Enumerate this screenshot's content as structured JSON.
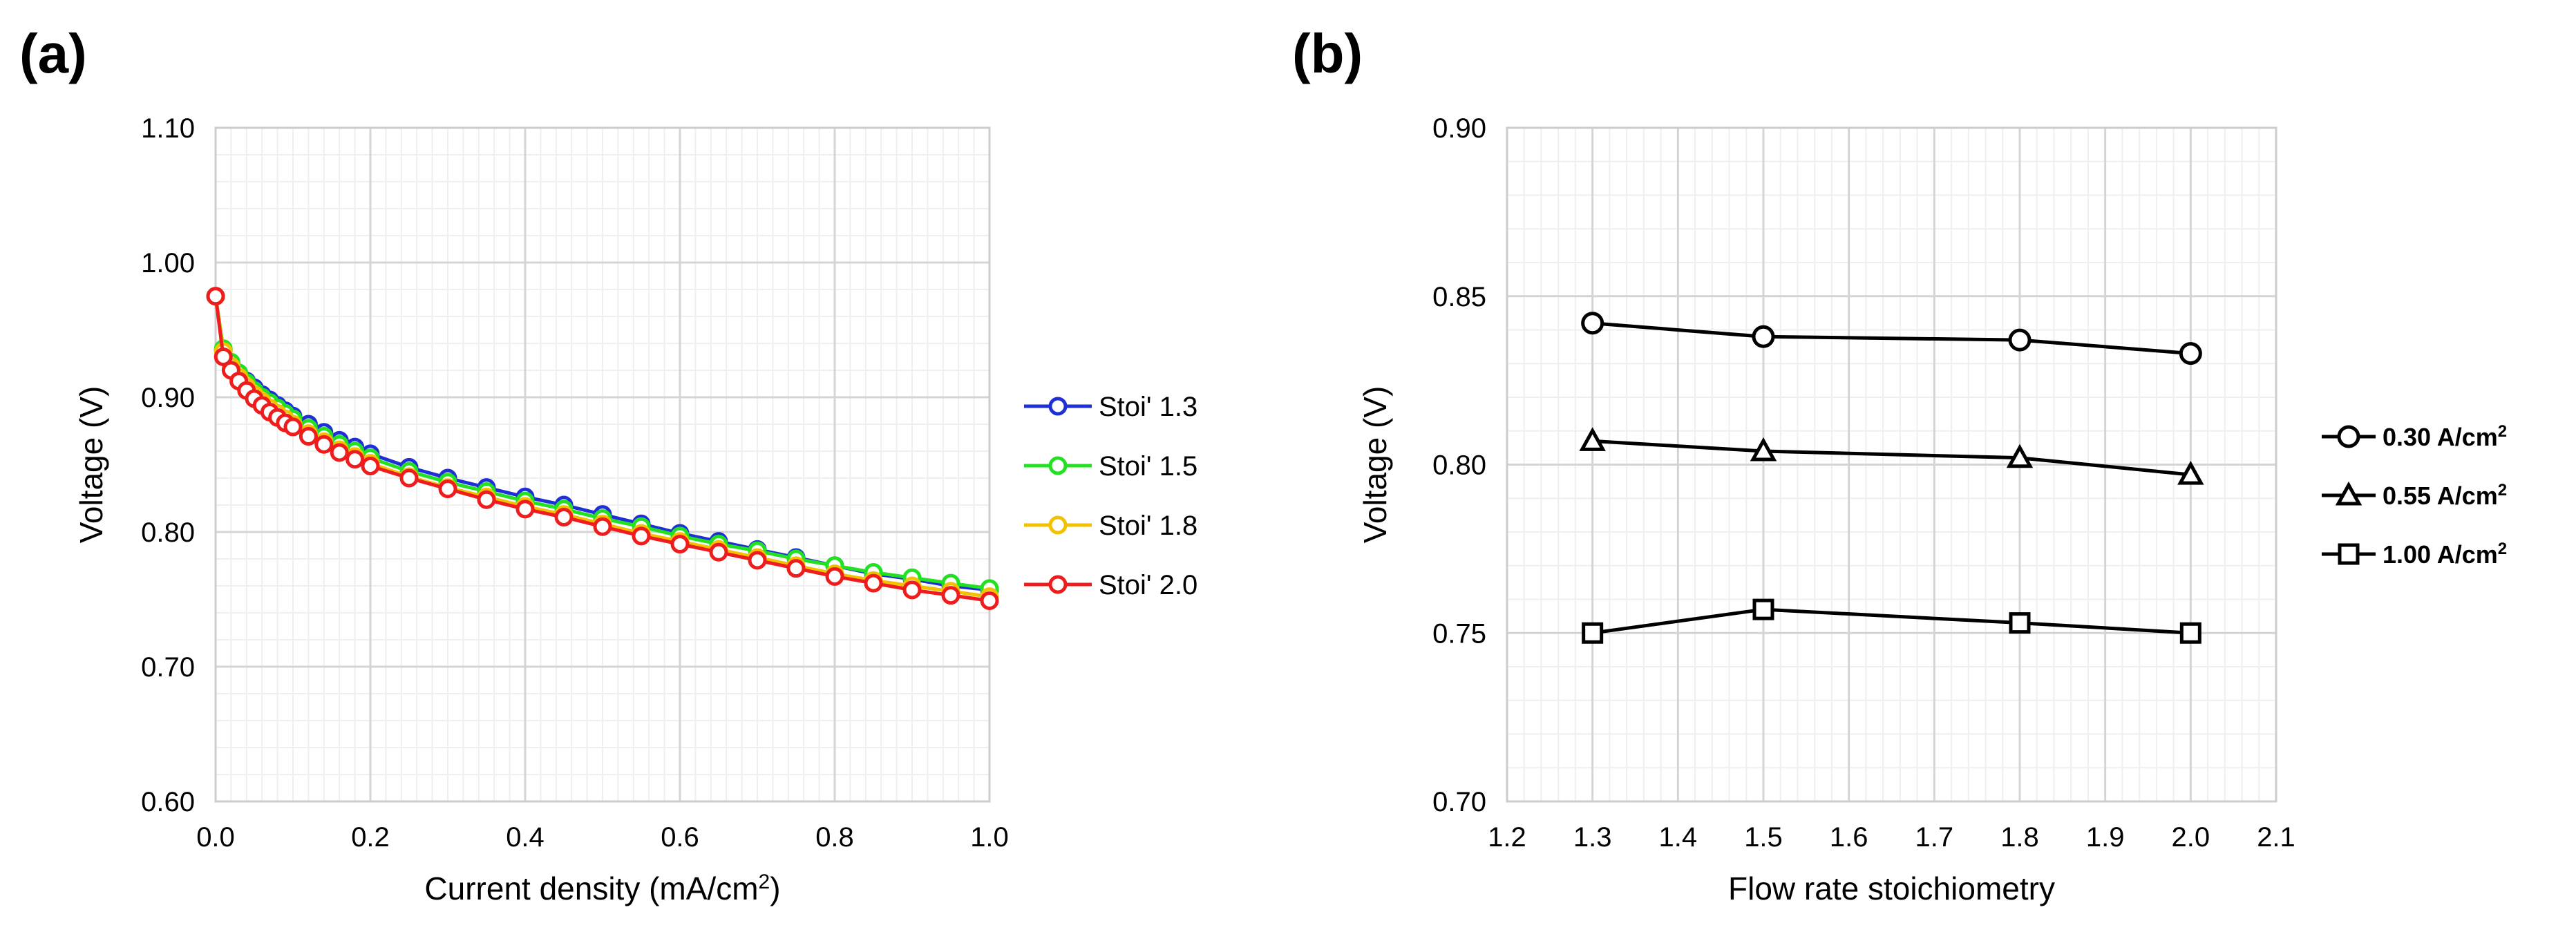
{
  "panels": {
    "a": "(a)",
    "b": "(b)"
  },
  "chart_data": [
    {
      "type": "line",
      "panel_label": "(a)",
      "title": "",
      "xlabel": "Current density (mA/cm",
      "xlabel_sup": "2",
      "xlabel_end": ")",
      "ylabel": "Voltage (V)",
      "xlim": [
        0.0,
        1.0
      ],
      "ylim": [
        0.6,
        1.1
      ],
      "xticks": [
        "0.0",
        "0.2",
        "0.4",
        "0.6",
        "0.8",
        "1.0"
      ],
      "yticks": [
        "0.60",
        "0.70",
        "0.80",
        "0.90",
        "1.00",
        "1.10"
      ],
      "grid": true,
      "legend_position": "right",
      "x": [
        0.0,
        0.01,
        0.02,
        0.03,
        0.04,
        0.05,
        0.06,
        0.07,
        0.08,
        0.09,
        0.1,
        0.12,
        0.14,
        0.16,
        0.18,
        0.2,
        0.25,
        0.3,
        0.35,
        0.4,
        0.45,
        0.5,
        0.55,
        0.6,
        0.65,
        0.7,
        0.75,
        0.8,
        0.85,
        0.9,
        0.95,
        1.0
      ],
      "series": [
        {
          "name": "Stoi' 1.3",
          "color": "#1f2fd6",
          "values": [
            0.975,
            0.935,
            0.925,
            0.918,
            0.912,
            0.907,
            0.902,
            0.898,
            0.894,
            0.89,
            0.886,
            0.88,
            0.874,
            0.868,
            0.863,
            0.858,
            0.848,
            0.84,
            0.833,
            0.826,
            0.82,
            0.813,
            0.806,
            0.799,
            0.793,
            0.787,
            0.781,
            0.775,
            0.769,
            0.765,
            0.76,
            0.757
          ]
        },
        {
          "name": "Stoi' 1.5",
          "color": "#22e022",
          "values": [
            0.975,
            0.936,
            0.926,
            0.918,
            0.911,
            0.905,
            0.9,
            0.896,
            0.892,
            0.888,
            0.884,
            0.877,
            0.871,
            0.865,
            0.86,
            0.855,
            0.845,
            0.837,
            0.83,
            0.823,
            0.817,
            0.81,
            0.804,
            0.797,
            0.791,
            0.786,
            0.78,
            0.775,
            0.77,
            0.766,
            0.762,
            0.758
          ]
        },
        {
          "name": "Stoi' 1.8",
          "color": "#f2c200",
          "values": [
            0.975,
            0.934,
            0.923,
            0.915,
            0.908,
            0.902,
            0.897,
            0.892,
            0.888,
            0.884,
            0.88,
            0.873,
            0.867,
            0.861,
            0.856,
            0.851,
            0.841,
            0.833,
            0.826,
            0.819,
            0.813,
            0.806,
            0.799,
            0.793,
            0.787,
            0.781,
            0.775,
            0.769,
            0.764,
            0.76,
            0.756,
            0.752
          ]
        },
        {
          "name": "Stoi' 2.0",
          "color": "#ee1c1c",
          "values": [
            0.975,
            0.93,
            0.92,
            0.912,
            0.905,
            0.899,
            0.894,
            0.889,
            0.885,
            0.881,
            0.878,
            0.871,
            0.865,
            0.859,
            0.854,
            0.849,
            0.84,
            0.832,
            0.824,
            0.817,
            0.811,
            0.804,
            0.797,
            0.791,
            0.785,
            0.779,
            0.773,
            0.767,
            0.762,
            0.757,
            0.753,
            0.749
          ]
        }
      ]
    },
    {
      "type": "line",
      "panel_label": "(b)",
      "title": "",
      "xlabel": "Flow rate stoichiometry",
      "ylabel": "Voltage (V)",
      "xlim": [
        1.2,
        2.1
      ],
      "ylim": [
        0.7,
        0.9
      ],
      "xticks": [
        "1.2",
        "1.3",
        "1.4",
        "1.5",
        "1.6",
        "1.7",
        "1.8",
        "1.9",
        "2.0",
        "2.1"
      ],
      "yticks": [
        "0.70",
        "0.75",
        "0.80",
        "0.85",
        "0.90"
      ],
      "grid": true,
      "legend_position": "right",
      "x": [
        1.3,
        1.5,
        1.8,
        2.0
      ],
      "series": [
        {
          "name": "0.30 A/cm",
          "sup": "2",
          "marker": "circle",
          "values": [
            0.842,
            0.838,
            0.837,
            0.833
          ]
        },
        {
          "name": "0.55 A/cm",
          "sup": "2",
          "marker": "triangle",
          "values": [
            0.807,
            0.804,
            0.802,
            0.797
          ]
        },
        {
          "name": "1.00 A/cm",
          "sup": "2",
          "marker": "square",
          "values": [
            0.75,
            0.757,
            0.753,
            0.75
          ]
        }
      ]
    }
  ]
}
